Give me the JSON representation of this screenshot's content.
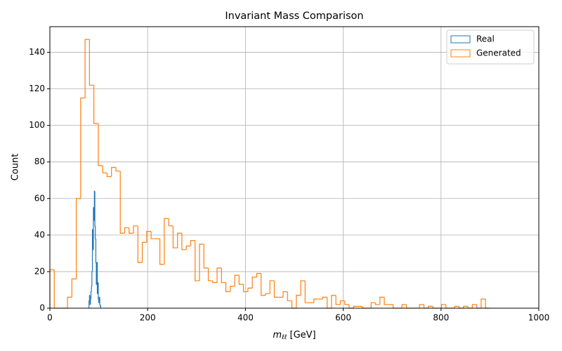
{
  "chart_data": {
    "type": "histogram_step",
    "title": "Invariant Mass Comparison",
    "xlabel": {
      "symbol": "m",
      "subscript": "ℓℓ",
      "unit": "[GeV]"
    },
    "ylabel": "Count",
    "xlim": [
      0,
      1000
    ],
    "xticks": [
      0,
      200,
      400,
      600,
      800,
      1000
    ],
    "ylim": [
      0,
      154
    ],
    "yticks": [
      0,
      20,
      40,
      60,
      80,
      100,
      120,
      140
    ],
    "grid": true,
    "legend": "upper right",
    "series": [
      {
        "name": "Real",
        "color": "#1f77b4",
        "bins": [
          80,
          81,
          82,
          83,
          84,
          85,
          86,
          87,
          88,
          89,
          90,
          91,
          92,
          93,
          94,
          95,
          96,
          97,
          98,
          99,
          100,
          101,
          102,
          103,
          104
        ],
        "values": [
          4,
          7,
          2,
          5,
          9,
          12,
          20,
          43,
          32,
          55,
          48,
          64,
          45,
          38,
          25,
          13,
          25,
          8,
          14,
          5,
          3,
          6,
          2,
          1
        ]
      },
      {
        "name": "Generated",
        "color": "#ff7f0e",
        "bins": [
          0,
          9,
          18,
          27,
          36,
          45,
          54,
          63,
          72,
          81,
          90,
          99,
          108,
          117,
          126,
          135,
          144,
          153,
          162,
          171,
          180,
          189,
          198,
          207,
          216,
          225,
          234,
          243,
          252,
          261,
          270,
          279,
          288,
          297,
          306,
          315,
          324,
          333,
          342,
          351,
          360,
          369,
          378,
          387,
          396,
          405,
          414,
          423,
          432,
          441,
          450,
          459,
          468,
          477,
          486,
          495,
          504,
          513,
          522,
          531,
          540,
          549,
          558,
          567,
          576,
          585,
          594,
          603,
          612,
          621,
          630,
          639,
          648,
          657,
          666,
          675,
          684,
          693,
          702,
          711,
          720,
          729,
          738,
          747,
          756,
          765,
          774,
          783,
          792,
          801,
          810,
          819,
          828,
          837,
          846,
          855,
          864,
          873,
          882,
          891,
          900
        ],
        "values": [
          21,
          0,
          0,
          0,
          6,
          16,
          60,
          115,
          147,
          122,
          101,
          78,
          74,
          72,
          77,
          75,
          41,
          44,
          41,
          45,
          25,
          36,
          42,
          38,
          38,
          24,
          49,
          45,
          33,
          41,
          32,
          34,
          37,
          15,
          35,
          22,
          15,
          14,
          22,
          14,
          9,
          12,
          18,
          13,
          9,
          11,
          17,
          19,
          7,
          8,
          15,
          6,
          6,
          9,
          4,
          0,
          7,
          15,
          3,
          3,
          5,
          5,
          6,
          0,
          7,
          2,
          4,
          2,
          0,
          1,
          1,
          0,
          0,
          3,
          2,
          6,
          2,
          2,
          0,
          0,
          2,
          0,
          0,
          0,
          2,
          0,
          1,
          0,
          0,
          2,
          0,
          0,
          1,
          0,
          1,
          0,
          2,
          0,
          5,
          0
        ]
      }
    ]
  }
}
